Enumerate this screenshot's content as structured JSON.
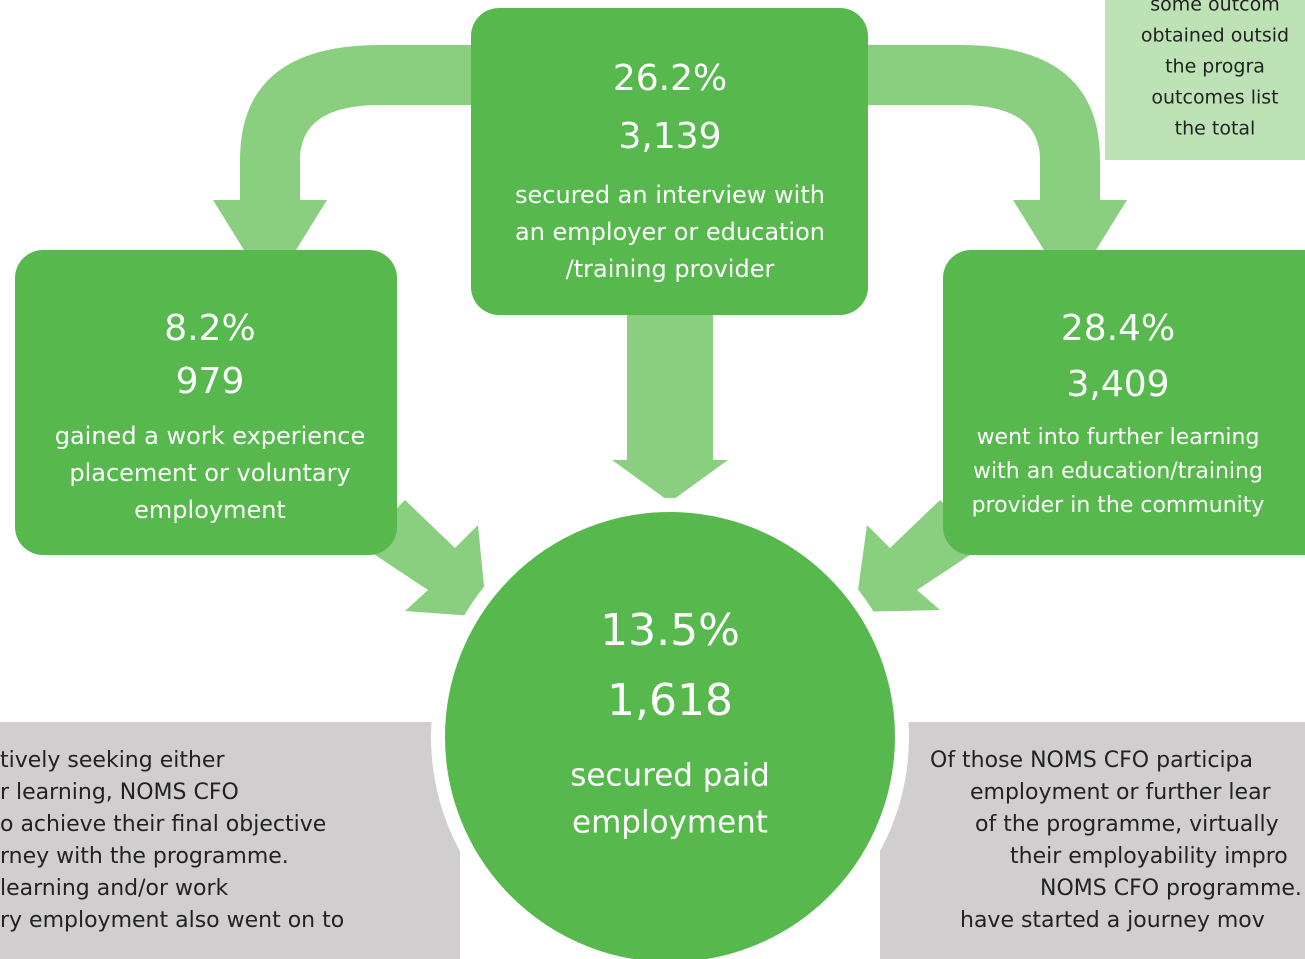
{
  "nodes": [
    {
      "percent": "26.2%",
      "count": "3,139",
      "label": [
        "secured an interview with",
        "an employer or education",
        "/training provider"
      ]
    },
    {
      "percent": "8.2%",
      "count": "979",
      "label": [
        "gained a work experience",
        "placement or voluntary",
        "employment"
      ]
    },
    {
      "percent": "28.4%",
      "count": "3,409",
      "label": [
        "went into further learning",
        "with an education/training",
        "provider in the community"
      ]
    },
    {
      "percent": "13.5%",
      "count": "1,618",
      "label": [
        "secured paid",
        "employment"
      ]
    }
  ],
  "note": [
    "some outcom",
    "obtained outsid",
    "the progra",
    "outcomes list",
    "the total"
  ],
  "left_text": [
    "tively seeking either",
    "r learning, NOMS CFO",
    "o achieve their final objective",
    "rney with the programme.",
    "learning and/or work",
    "ry employment also went on to"
  ],
  "right_text": [
    "Of those NOMS CFO participa",
    "employment or further lear",
    "of the programme, virtually",
    "their employability impro",
    "NOMS CFO programme.",
    "have started a journey mov"
  ]
}
